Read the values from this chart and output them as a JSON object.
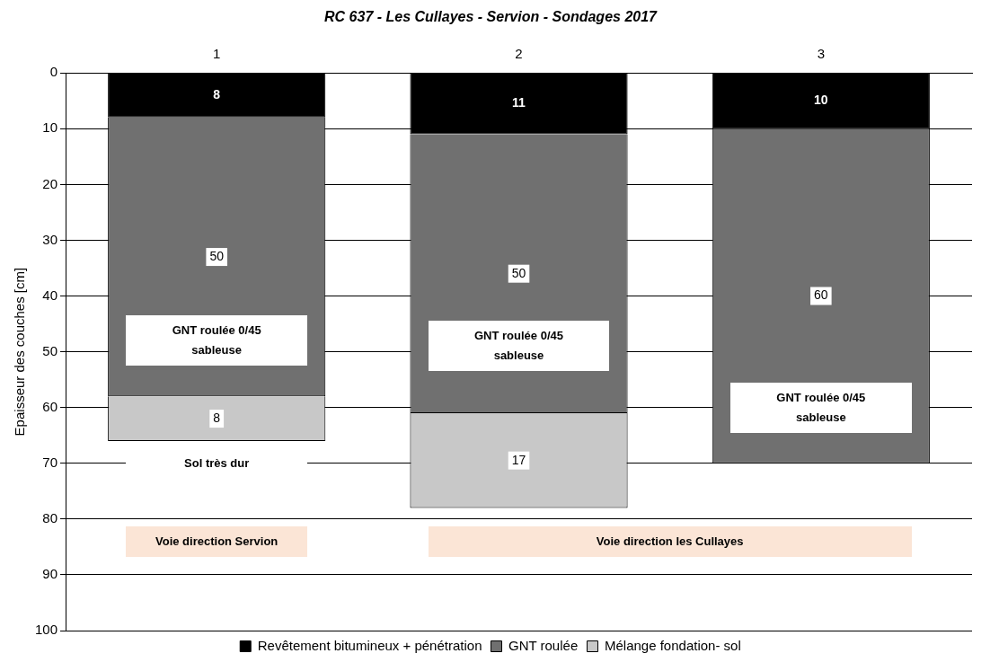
{
  "chart_data": {
    "type": "bar",
    "title": "RC 637 - Les Cullayes - Servion - Sondages 2017",
    "ylabel": "Epaisseur des couches [cm]",
    "categories": [
      "1",
      "2",
      "3"
    ],
    "stacked": true,
    "data_labels": true,
    "grid": "y",
    "legend": "bottom",
    "ylim": [
      100,
      0
    ],
    "yticks": [
      0,
      10,
      20,
      30,
      40,
      50,
      60,
      70,
      80,
      90,
      100
    ],
    "series": [
      {
        "name": "Revêtement bitumineux + pénétration",
        "color": "#000000",
        "values": [
          8,
          11,
          10
        ]
      },
      {
        "name": "GNT roulée",
        "color": "#707070",
        "values": [
          50,
          50,
          60
        ]
      },
      {
        "name": "Mélange fondation- sol",
        "color": "#c8c8c8",
        "values": [
          8,
          17,
          null
        ]
      }
    ],
    "annotations": [
      "GNT roulée 0/45\nsableuse",
      "GNT roulée 0/45\nsableuse",
      "GNT roulée 0/45\nsableuse",
      "Sol très dur",
      "Voie direction Servion",
      "Voie direction les Cullayes"
    ]
  }
}
